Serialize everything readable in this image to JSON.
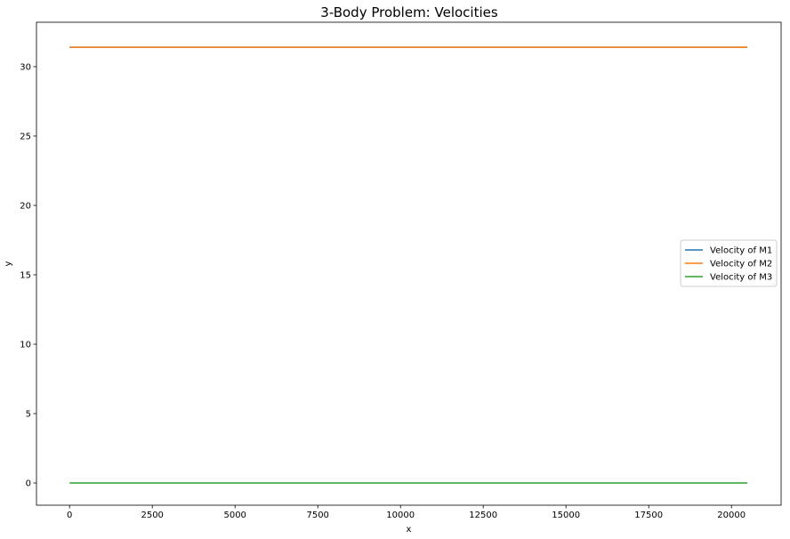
{
  "chart_data": {
    "type": "line",
    "title": "3-Body Problem: Velocities",
    "xlabel": "x",
    "ylabel": "y",
    "xlim": [
      -1000,
      21500
    ],
    "ylim": [
      -1.6,
      33.2
    ],
    "xticks": [
      0,
      2500,
      5000,
      7500,
      10000,
      12500,
      15000,
      17500,
      20000
    ],
    "yticks": [
      0,
      5,
      10,
      15,
      20,
      25,
      30
    ],
    "grid": false,
    "legend_position": "center-right",
    "series": [
      {
        "name": "Velocity of M1",
        "color": "#1f77b4",
        "x": [
          0,
          20480
        ],
        "y": [
          31.4,
          31.4
        ]
      },
      {
        "name": "Velocity of M2",
        "color": "#ff7f0e",
        "x": [
          0,
          20480
        ],
        "y": [
          31.4,
          31.4
        ]
      },
      {
        "name": "Velocity of M3",
        "color": "#2ca02c",
        "x": [
          0,
          20480
        ],
        "y": [
          0,
          0
        ]
      }
    ]
  }
}
